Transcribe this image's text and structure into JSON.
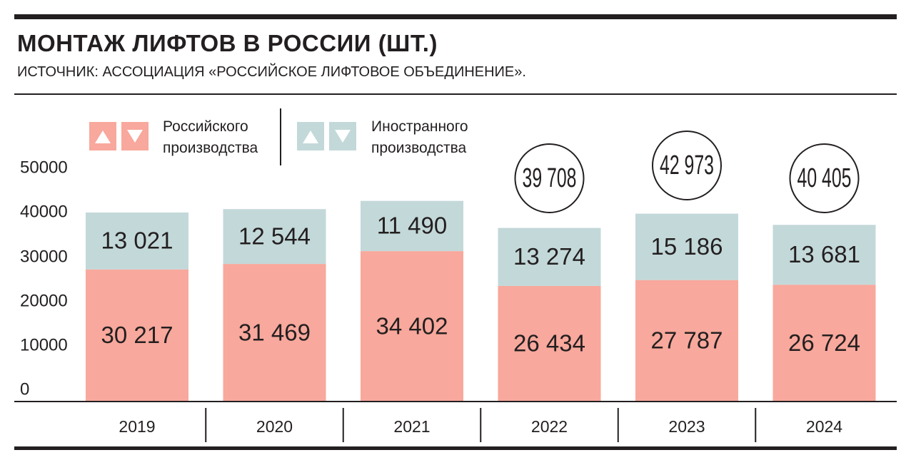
{
  "header": {
    "title": "МОНТАЖ ЛИФТОВ В РОССИИ (ШТ.)",
    "subtitle": "ИСТОЧНИК: АССОЦИАЦИЯ «РОССИЙСКОЕ ЛИФТОВОЕ ОБЪЕДИНЕНИЕ»."
  },
  "legend": {
    "domestic": "Российского\nпроизводства",
    "foreign": "Иностранного\nпроизводства"
  },
  "colors": {
    "domestic": "#f8a89c",
    "foreign": "#c3d8d9",
    "ink": "#231f20"
  },
  "icons": [
    "triangle-up-icon",
    "triangle-down-icon"
  ],
  "chart_data": {
    "type": "bar",
    "stacked": true,
    "categories": [
      "2019",
      "2020",
      "2021",
      "2022",
      "2023",
      "2024"
    ],
    "series": [
      {
        "name": "Российского производства",
        "values": [
          30217,
          31469,
          34402,
          26434,
          27787,
          26724
        ],
        "labels": [
          "30 217",
          "31 469",
          "34 402",
          "26 434",
          "27 787",
          "26 724"
        ]
      },
      {
        "name": "Иностранного производства",
        "values": [
          13021,
          12544,
          11490,
          13274,
          15186,
          13681
        ],
        "labels": [
          "13 021",
          "12 544",
          "11 490",
          "13 274",
          "15 186",
          "13 681"
        ]
      }
    ],
    "totals": [
      {
        "year": "2022",
        "label": "39 708"
      },
      {
        "year": "2023",
        "label": "42 973"
      },
      {
        "year": "2024",
        "label": "40 405"
      }
    ],
    "yticks": [
      "0",
      "10000",
      "20000",
      "30000",
      "40000",
      "50000"
    ],
    "ylim": [
      0,
      53000
    ],
    "grid": false
  }
}
